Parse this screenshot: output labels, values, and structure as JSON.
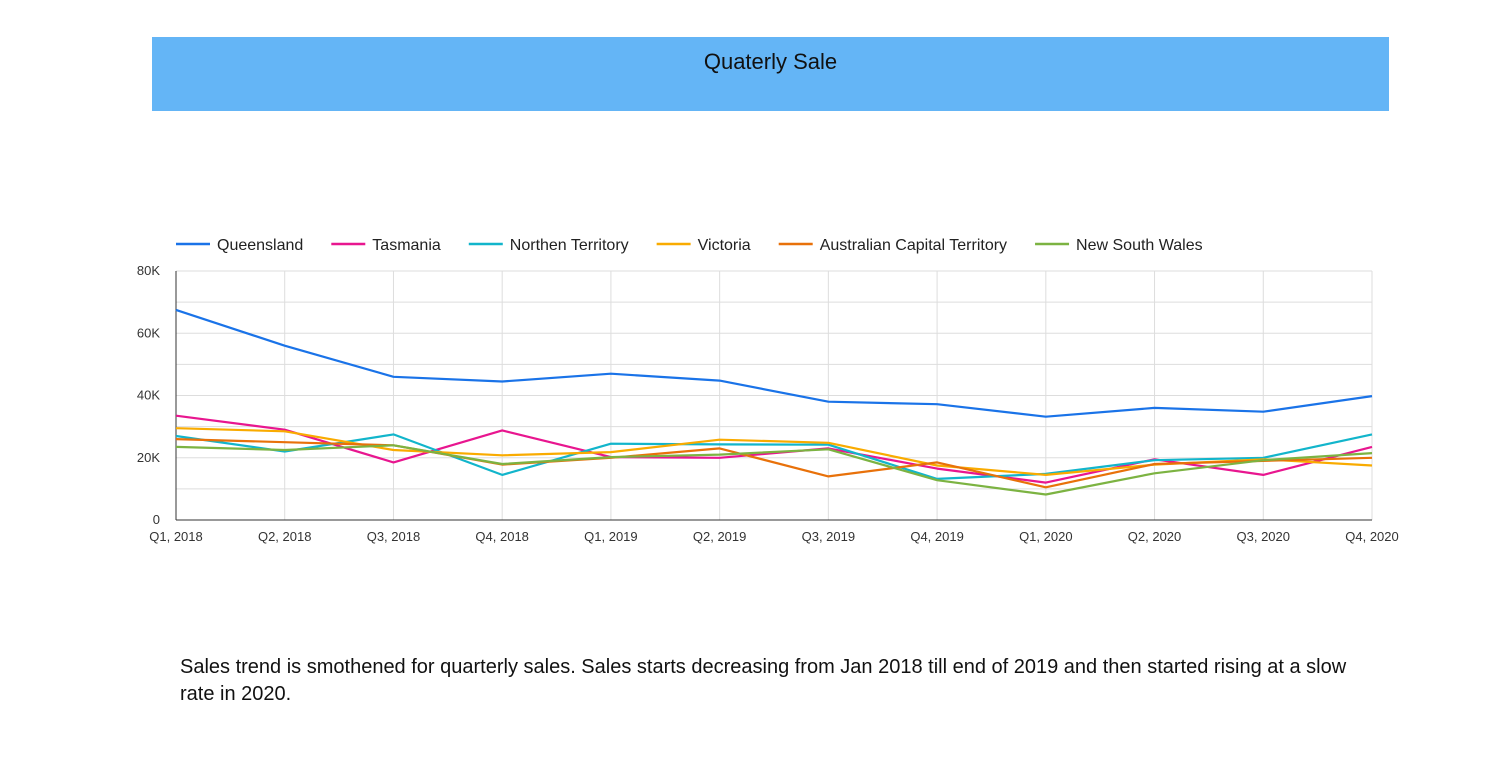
{
  "header": {
    "title": "Quaterly Sale",
    "background_color": "#64b5f6"
  },
  "chart_data": {
    "type": "line",
    "title": "Quaterly Sale",
    "xlabel": "",
    "ylabel": "",
    "categories": [
      "Q1, 2018",
      "Q2, 2018",
      "Q3, 2018",
      "Q4, 2018",
      "Q1, 2019",
      "Q2, 2019",
      "Q3, 2019",
      "Q4, 2019",
      "Q1, 2020",
      "Q2, 2020",
      "Q3, 2020",
      "Q4, 2020"
    ],
    "ylim": [
      0,
      80000
    ],
    "y_ticks": [
      {
        "value": 0,
        "label": "0"
      },
      {
        "value": 20000,
        "label": "20K"
      },
      {
        "value": 40000,
        "label": "40K"
      },
      {
        "value": 60000,
        "label": "60K"
      },
      {
        "value": 80000,
        "label": "80K"
      }
    ],
    "grid": true,
    "legend_position": "top-left",
    "series": [
      {
        "name": "Queensland",
        "color": "#1a73e8",
        "values": [
          67500,
          56000,
          46000,
          44500,
          47000,
          44800,
          38000,
          37200,
          33200,
          36000,
          34800,
          39800
        ]
      },
      {
        "name": "Tasmania",
        "color": "#e8168f",
        "values": [
          33500,
          29000,
          18500,
          28800,
          20200,
          20000,
          23000,
          16500,
          12000,
          19500,
          14500,
          23500
        ]
      },
      {
        "name": "Northen Territory",
        "color": "#12b5cb",
        "values": [
          27000,
          22000,
          27500,
          14500,
          24500,
          24300,
          24200,
          13200,
          14800,
          19200,
          20000,
          27500
        ]
      },
      {
        "name": "Victoria",
        "color": "#f9ab00",
        "values": [
          29500,
          28500,
          22500,
          20800,
          21800,
          25800,
          24800,
          17500,
          14500,
          17800,
          19500,
          17500
        ]
      },
      {
        "name": "Australian Capital Territory",
        "color": "#e8710a",
        "values": [
          26000,
          25000,
          24000,
          17800,
          20000,
          23000,
          14000,
          18500,
          10500,
          18000,
          19000,
          20000
        ]
      },
      {
        "name": "New South Wales",
        "color": "#7cb342",
        "values": [
          23500,
          22500,
          24000,
          18000,
          20200,
          21000,
          22700,
          12800,
          8200,
          15000,
          19200,
          21500
        ]
      }
    ]
  },
  "summary": {
    "text": "Sales trend is smothened for quarterly sales. Sales starts decreasing from Jan 2018 till end of 2019 and then started rising at a slow rate in 2020."
  }
}
